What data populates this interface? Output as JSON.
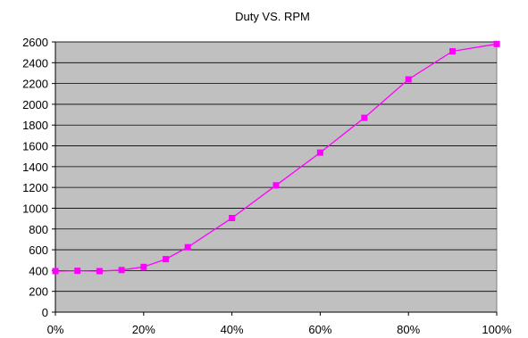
{
  "chart_data": {
    "type": "line",
    "title": "Duty VS. RPM",
    "xlabel": "",
    "ylabel": "",
    "xlim": [
      0,
      100
    ],
    "ylim": [
      0,
      2600
    ],
    "x_ticks": [
      "0%",
      "20%",
      "40%",
      "60%",
      "80%",
      "100%"
    ],
    "y_ticks": [
      "0",
      "200",
      "400",
      "600",
      "800",
      "1000",
      "1200",
      "1400",
      "1600",
      "1800",
      "2000",
      "2200",
      "2400",
      "2600"
    ],
    "grid": true,
    "legend": "none",
    "series": [
      {
        "x": [
          0,
          5,
          10,
          15,
          20,
          25,
          30,
          40,
          50,
          60,
          70,
          80,
          90,
          100
        ],
        "values": [
          395,
          398,
          395,
          405,
          435,
          510,
          625,
          905,
          1220,
          1535,
          1870,
          2240,
          2510,
          2580
        ]
      }
    ],
    "colors": {
      "plot_background": "#c0c0c0",
      "line": "#ff00ff",
      "gridline": "#000000"
    }
  }
}
